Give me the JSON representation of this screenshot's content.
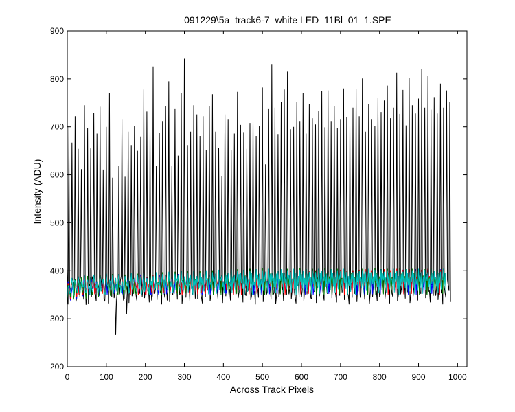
{
  "chart_data": {
    "type": "line",
    "title": "091229\\5a_track6-7_white LED_11Bl_01_1.SPE",
    "xlabel": "Across Track Pixels",
    "ylabel": "Intensity (ADU)",
    "xlim": [
      0,
      1024
    ],
    "ylim": [
      200,
      900
    ],
    "xticks": [
      0,
      100,
      200,
      300,
      400,
      500,
      600,
      700,
      800,
      900,
      1000
    ],
    "yticks": [
      200,
      300,
      400,
      500,
      600,
      700,
      800,
      900
    ],
    "grid": false,
    "legend": "none",
    "series": [
      {
        "color": "#000000",
        "pattern": "spiky",
        "x_step": 4,
        "values": [
          405,
          701,
          359,
          667,
          375,
          722,
          342,
          654,
          381,
          612,
          366,
          745,
          329,
          698,
          372,
          655,
          388,
          729,
          351,
          686,
          366,
          742,
          370,
          611,
          336,
          700,
          375,
          770,
          360,
          594,
          343,
          266,
          361,
          618,
          379,
          715,
          338,
          596,
          310,
          690,
          379,
          662,
          367,
          702,
          350,
          650,
          373,
          680,
          346,
          778,
          369,
          732,
          361,
          693,
          338,
          826,
          352,
          618,
          375,
          687,
          378,
          712,
          353,
          744,
          338,
          795,
          360,
          618,
          364,
          737,
          377,
          640,
          350,
          771,
          348,
          842,
          345,
          662,
          370,
          690,
          353,
          745,
          342,
          726,
          376,
          681,
          343,
          722,
          359,
          652,
          372,
          743,
          349,
          768,
          365,
          690,
          359,
          656,
          357,
          598,
          378,
          726,
          367,
          715,
          361,
          652,
          370,
          686,
          348,
          773,
          355,
          704,
          384,
          689,
          351,
          654,
          358,
          708,
          347,
          712,
          356,
          681,
          361,
          702,
          369,
          782,
          370,
          622,
          356,
          737,
          365,
          831,
          351,
          740,
          346,
          685,
          355,
          752,
          367,
          778,
          372,
          815,
          351,
          695,
          360,
          700,
          342,
          752,
          373,
          712,
          345,
          771,
          361,
          686,
          378,
          748,
          343,
          718,
          364,
          705,
          363,
          733,
          376,
          774,
          351,
          699,
          368,
          776,
          356,
          712,
          372,
          743,
          349,
          697,
          363,
          715,
          355,
          780,
          366,
          720,
          349,
          704,
          375,
          740,
          352,
          779,
          368,
          722,
          344,
          801,
          364,
          690,
          372,
          747,
          350,
          715,
          366,
          702,
          357,
          760,
          346,
          731,
          371,
          755,
          358,
          786,
          364,
          718,
          352,
          740,
          369,
          813,
          348,
          727,
          361,
          777,
          373,
          703,
          356,
          802,
          348,
          745,
          364,
          728,
          370,
          759,
          355,
          820,
          367,
          740,
          352,
          806,
          358,
          736,
          372,
          762,
          348,
          728,
          365,
          790,
          361,
          740,
          353,
          776,
          369,
          752
        ]
      },
      {
        "color": "#0000ff",
        "pattern": "noise",
        "x_step": 4,
        "values": [
          355,
          372,
          338,
          361,
          349,
          377,
          342,
          368,
          356,
          382,
          347,
          371,
          359,
          386,
          350,
          375,
          362,
          381,
          355,
          372,
          347,
          388,
          360,
          375,
          352,
          384,
          365,
          377,
          349,
          389,
          361,
          374,
          356,
          385,
          368,
          372,
          353,
          390,
          362,
          377,
          358,
          386,
          351,
          381,
          366,
          378,
          357,
          392,
          363,
          375,
          350,
          387,
          369,
          380,
          354,
          385,
          362,
          377,
          359,
          391,
          364,
          374,
          352,
          388,
          367,
          382,
          356,
          386,
          361,
          378,
          353,
          393,
          365,
          376,
          358,
          385,
          370,
          381,
          355,
          389,
          362,
          378,
          359,
          387,
          366,
          383,
          354,
          392,
          368,
          379,
          360,
          388,
          364,
          384,
          357,
          390,
          369,
          380,
          362,
          391,
          366,
          385,
          358,
          393,
          371,
          382,
          363,
          389,
          367,
          386,
          359,
          395,
          372,
          383,
          364,
          390,
          368,
          387,
          361,
          394,
          373,
          384,
          365,
          391,
          369,
          388,
          362,
          396,
          374,
          385,
          366,
          392,
          370,
          389,
          363,
          397,
          375,
          386,
          367,
          393,
          371,
          390,
          364,
          398,
          376,
          387,
          368,
          394,
          372,
          391,
          365,
          399,
          377,
          388,
          369,
          395,
          373,
          392,
          366,
          400,
          378,
          389,
          370,
          396,
          374,
          393,
          367,
          397,
          379,
          390,
          371,
          395,
          375,
          394,
          368,
          398,
          380,
          391,
          372,
          396,
          376,
          395,
          369,
          399,
          381,
          392,
          373,
          397,
          377,
          396,
          370,
          400,
          382,
          393,
          374,
          398,
          378,
          397,
          371,
          401,
          383,
          394,
          375,
          399,
          379,
          398,
          372,
          400,
          384,
          395,
          376,
          401,
          380,
          399,
          373,
          402,
          385,
          396,
          377,
          400,
          381,
          398,
          374,
          403,
          386,
          397,
          378,
          401,
          382,
          399,
          375,
          402,
          387,
          396,
          379,
          400,
          383,
          398,
          376,
          403,
          388
        ]
      },
      {
        "color": "#ff0000",
        "pattern": "noise",
        "x_step": 4,
        "values": [
          348,
          366,
          340,
          372,
          351,
          378,
          345,
          369,
          357,
          380,
          349,
          374,
          361,
          383,
          352,
          371,
          364,
          386,
          355,
          376,
          348,
          385,
          362,
          373,
          354,
          387,
          367,
          379,
          350,
          388,
          363,
          372,
          357,
          384,
          370,
          375,
          352,
          391,
          364,
          380,
          359,
          387,
          353,
          382,
          368,
          376,
          356,
          389,
          365,
          379,
          351,
          386,
          371,
          383,
          355,
          390,
          363,
          378,
          360,
          388,
          366,
          375,
          353,
          392,
          369,
          381,
          357,
          387,
          362,
          380,
          354,
          391,
          367,
          377,
          359,
          386,
          372,
          384,
          356,
          392,
          364,
          379,
          361,
          388,
          368,
          382,
          355,
          393,
          370,
          380,
          362,
          390,
          365,
          385,
          358,
          394,
          372,
          381,
          363,
          391,
          367,
          386,
          360,
          395,
          373,
          383,
          364,
          392,
          369,
          387,
          361,
          396,
          374,
          384,
          366,
          393,
          370,
          388,
          362,
          397,
          375,
          385,
          367,
          394,
          371,
          389,
          364,
          398,
          376,
          386,
          368,
          395,
          372,
          390,
          365,
          399,
          377,
          387,
          369,
          396,
          373,
          391,
          366,
          400,
          378,
          388,
          370,
          397,
          374,
          392,
          367,
          398,
          379,
          389,
          371,
          399,
          375,
          393,
          368,
          401,
          380,
          390,
          372,
          398,
          376,
          394,
          369,
          400,
          381,
          391,
          373,
          399,
          377,
          395,
          370,
          402,
          382,
          392,
          374,
          400,
          378,
          396,
          371,
          401,
          383,
          393,
          375,
          402,
          379,
          397,
          372,
          403,
          384,
          394,
          376,
          401,
          380,
          398,
          373,
          402,
          385,
          395,
          377,
          403,
          381,
          399,
          374,
          401,
          386,
          396,
          378,
          404,
          382,
          397,
          375,
          402,
          387,
          395,
          379,
          403,
          383,
          398,
          376,
          401,
          388,
          394,
          380,
          402,
          384,
          397,
          377,
          404,
          389,
          395,
          381,
          400,
          385,
          396,
          378,
          402,
          390
        ]
      },
      {
        "color": "#008000",
        "pattern": "noise",
        "x_step": 4,
        "values": [
          338,
          362,
          345,
          378,
          340,
          383,
          353,
          370,
          346,
          386,
          358,
          373,
          342,
          389,
          361,
          376,
          349,
          384,
          364,
          372,
          345,
          391,
          357,
          379,
          351,
          388,
          366,
          374,
          347,
          393,
          360,
          381,
          354,
          387,
          369,
          376,
          349,
          392,
          363,
          383,
          356,
          389,
          372,
          378,
          351,
          394,
          365,
          385,
          358,
          390,
          374,
          380,
          353,
          396,
          367,
          386,
          360,
          391,
          376,
          382,
          355,
          397,
          369,
          387,
          362,
          392,
          378,
          384,
          357,
          398,
          371,
          388,
          364,
          393,
          380,
          385,
          359,
          399,
          373,
          389,
          366,
          394,
          382,
          386,
          361,
          400,
          375,
          390,
          368,
          395,
          384,
          387,
          363,
          401,
          377,
          391,
          370,
          396,
          386,
          388,
          365,
          402,
          379,
          392,
          372,
          397,
          388,
          389,
          367,
          403,
          381,
          393,
          374,
          398,
          390,
          390,
          369,
          404,
          383,
          394,
          376,
          399,
          392,
          391,
          371,
          405,
          385,
          395,
          378,
          400,
          394,
          392,
          373,
          403,
          387,
          396,
          380,
          401,
          395,
          393,
          375,
          404,
          389,
          397,
          382,
          402,
          393,
          394,
          377,
          405,
          391,
          398,
          384,
          403,
          392,
          395,
          379,
          404,
          393,
          399,
          386,
          402,
          390,
          396,
          381,
          405,
          394,
          398,
          388,
          403,
          389,
          397,
          383,
          404,
          395,
          399,
          385,
          402,
          391,
          398,
          380,
          405,
          396,
          397,
          387,
          403,
          392,
          399,
          384,
          404,
          393,
          398,
          386,
          402,
          394,
          397,
          382,
          405,
          395,
          399,
          388,
          403,
          391,
          398,
          385,
          404,
          396,
          397,
          387,
          402,
          393,
          399,
          383,
          405,
          394,
          398,
          389,
          403,
          392,
          397,
          386,
          404,
          395,
          399,
          384,
          402,
          396,
          398,
          390,
          403,
          393,
          397,
          387,
          404,
          394,
          399,
          385,
          402,
          395,
          398,
          388,
          403,
          396
        ]
      },
      {
        "color": "#00bfbf",
        "pattern": "noise",
        "x_step": 4,
        "values": [
          343,
          370,
          355,
          385,
          348,
          379,
          362,
          388,
          351,
          376,
          366,
          390,
          354,
          381,
          369,
          387,
          357,
          392,
          372,
          378,
          360,
          389,
          364,
          383,
          352,
          394,
          367,
          380,
          358,
          391,
          373,
          385,
          355,
          393,
          369,
          382,
          361,
          389,
          375,
          386,
          357,
          395,
          371,
          384,
          363,
          392,
          377,
          388,
          359,
          396,
          373,
          385,
          365,
          390,
          379,
          389,
          361,
          397,
          375,
          386,
          367,
          393,
          381,
          390,
          363,
          398,
          377,
          387,
          369,
          394,
          383,
          391,
          365,
          399,
          379,
          388,
          371,
          395,
          385,
          392,
          367,
          400,
          381,
          389,
          373,
          396,
          387,
          393,
          369,
          401,
          383,
          390,
          375,
          397,
          389,
          394,
          371,
          402,
          385,
          391,
          377,
          398,
          391,
          395,
          373,
          403,
          387,
          392,
          379,
          399,
          393,
          396,
          375,
          402,
          389,
          393,
          381,
          400,
          395,
          397,
          377,
          403,
          391,
          394,
          383,
          401,
          396,
          398,
          379,
          404,
          393,
          395,
          385,
          402,
          394,
          399,
          381,
          403,
          395,
          396,
          387,
          401,
          392,
          398,
          383,
          404,
          396,
          397,
          389,
          402,
          393,
          399,
          385,
          403,
          394,
          398,
          387,
          401,
          395,
          397,
          382,
          404,
          396,
          399,
          388,
          402,
          393,
          398,
          384,
          403,
          395,
          397,
          386,
          401,
          394,
          399,
          383,
          404,
          396,
          398,
          389,
          402,
          393,
          397,
          385,
          403,
          395,
          399,
          387,
          401,
          394,
          398,
          382,
          404,
          396,
          397,
          388,
          402,
          393,
          399,
          384,
          403,
          395,
          398,
          386,
          401,
          394,
          397,
          383,
          404,
          396,
          399,
          389,
          402,
          393,
          398,
          385,
          403,
          395,
          397,
          387,
          401,
          394,
          399,
          382,
          404,
          396,
          398,
          388,
          402,
          393,
          397,
          384,
          403,
          395,
          399,
          386,
          401,
          394,
          398,
          383,
          404,
          396
        ]
      }
    ]
  }
}
